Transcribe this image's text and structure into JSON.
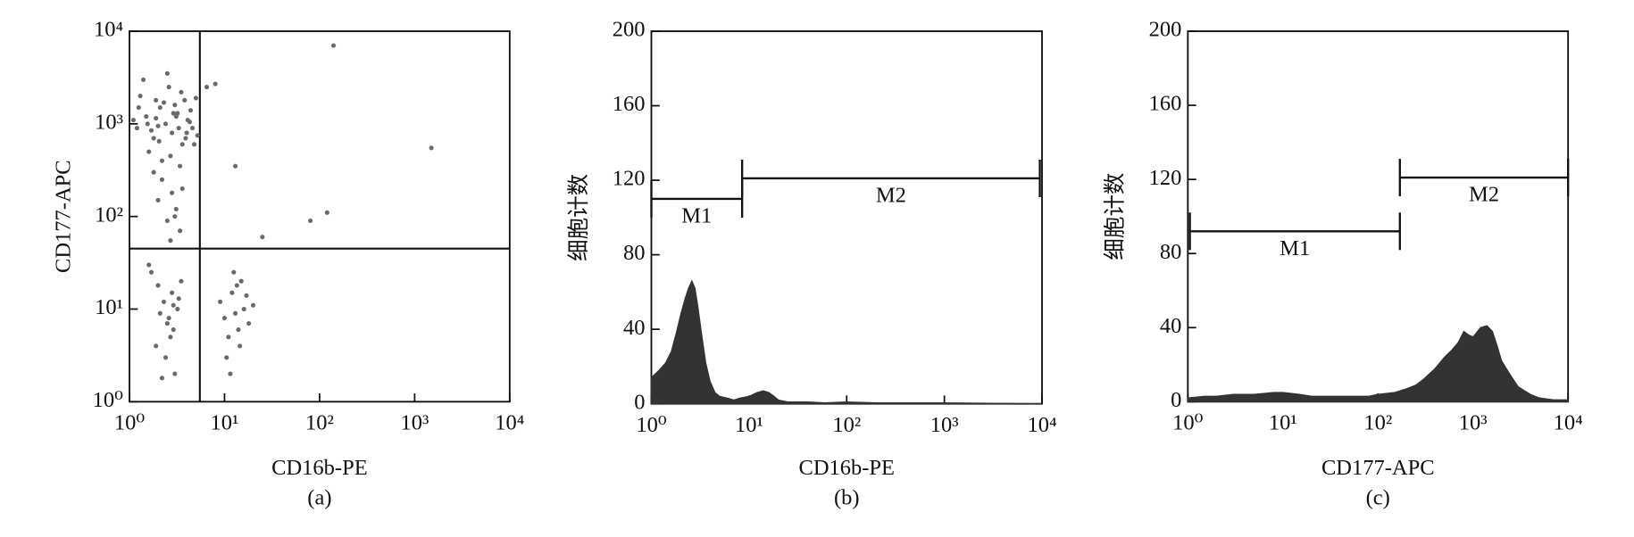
{
  "chart_data": [
    {
      "type": "scatter",
      "xlabel": "CD16b-PE",
      "ylabel": "CD177-APC",
      "caption": "(a)",
      "log": true,
      "xlim": [
        1,
        10000
      ],
      "ylim": [
        1,
        10000
      ],
      "xticks": [
        {
          "value": 1,
          "label": "10⁰"
        },
        {
          "value": 10,
          "label": "10¹"
        },
        {
          "value": 100,
          "label": "10²"
        },
        {
          "value": 1000,
          "label": "10³"
        },
        {
          "value": 10000,
          "label": "10⁴"
        }
      ],
      "yticks": [
        {
          "value": 1,
          "label": "10⁰"
        },
        {
          "value": 10,
          "label": "10¹"
        },
        {
          "value": 100,
          "label": "10²"
        },
        {
          "value": 1000,
          "label": "10³"
        },
        {
          "value": 10000,
          "label": "10⁴"
        }
      ],
      "quadrant": {
        "x": 5.5,
        "y": 45
      },
      "series": [
        {
          "color": "#6a6a6a",
          "x": [
            1.2,
            1.5,
            1.8,
            2.1,
            2.4,
            2.8,
            3.2,
            3.6,
            4.1,
            4.6,
            1.3,
            1.6,
            1.9,
            2.2,
            2.6,
            3.0,
            3.4,
            3.9,
            4.4,
            5.0,
            1.1,
            1.4,
            1.7,
            2.0,
            2.3,
            2.7,
            3.1,
            3.5,
            4.0,
            4.8,
            1.25,
            1.55,
            2.05,
            2.5,
            2.9,
            3.3,
            3.8,
            4.3,
            5.2,
            1.9,
            2.2,
            2.8,
            3.1,
            2.5,
            3.4,
            2.0,
            2.7,
            3.6,
            1.8,
            3.0,
            1.6,
            2.0,
            2.3,
            2.6,
            2.9,
            3.2,
            1.9,
            2.4,
            2.8,
            3.5,
            2.1,
            2.7,
            3.0,
            1.7,
            2.5,
            3.3,
            2.2,
            2.9,
            9,
            10,
            11,
            12,
            13,
            14,
            15,
            16,
            18,
            10.5,
            12.5,
            14.5,
            17,
            20,
            11.5,
            13.5,
            140,
            13,
            80,
            120,
            1500,
            25,
            6.5,
            8
          ],
          "values": [
            900,
            1200,
            700,
            1500,
            1000,
            800,
            1300,
            600,
            1100,
            900,
            2000,
            500,
            1800,
            400,
            2500,
            1600,
            350,
            700,
            1400,
            1900,
            1100,
            3000,
            850,
            950,
            1700,
            450,
            1200,
            2200,
            800,
            600,
            1500,
            1000,
            650,
            3500,
            1300,
            900,
            1800,
            1050,
            750,
            1150,
            250,
            180,
            120,
            90,
            70,
            150,
            55,
            200,
            300,
            100,
            30,
            18,
            12,
            8,
            6,
            10,
            4,
            3,
            15,
            20,
            9,
            5,
            2,
            25,
            7,
            13,
            1.8,
            11,
            12,
            8,
            5,
            15,
            9,
            6,
            20,
            10,
            7,
            3,
            25,
            4,
            14,
            11,
            2,
            18,
            7000,
            350,
            90,
            110,
            550,
            60,
            2500,
            2700
          ]
        }
      ]
    },
    {
      "type": "area",
      "xlabel": "CD16b-PE",
      "ylabel": "细胞计数",
      "caption": "(b)",
      "log": true,
      "color": "#333333",
      "xlim": [
        1,
        10000
      ],
      "ylim": [
        0,
        200
      ],
      "xticks": [
        {
          "value": 1,
          "label": "10⁰"
        },
        {
          "value": 10,
          "label": "10¹"
        },
        {
          "value": 100,
          "label": "10²"
        },
        {
          "value": 1000,
          "label": "10³"
        },
        {
          "value": 10000,
          "label": "10⁴"
        }
      ],
      "yticks": [
        0,
        40,
        80,
        120,
        160,
        200
      ],
      "x": [
        1,
        1.2,
        1.4,
        1.6,
        1.8,
        2.0,
        2.2,
        2.4,
        2.6,
        2.8,
        3.0,
        3.3,
        3.6,
        4.0,
        4.5,
        5,
        6,
        7,
        8,
        10,
        12,
        14,
        16,
        18,
        20,
        25,
        30,
        40,
        60,
        100,
        200,
        500,
        1000,
        3000,
        10000
      ],
      "values": [
        14,
        18,
        22,
        28,
        38,
        48,
        56,
        62,
        66,
        62,
        52,
        36,
        22,
        12,
        6,
        4,
        3,
        2,
        3,
        4,
        6,
        7,
        6,
        4,
        2,
        1,
        1,
        1,
        0.5,
        1,
        0.5,
        0.5,
        0.5,
        0.3,
        0
      ],
      "gates": [
        {
          "label": "M1",
          "range": [
            1,
            8.5
          ],
          "level": 110
        },
        {
          "label": "M2",
          "range": [
            8.5,
            9500
          ],
          "level": 121
        }
      ]
    },
    {
      "type": "area",
      "xlabel": "CD177-APC",
      "ylabel": "细胞计数",
      "caption": "(c)",
      "log": true,
      "color": "#333333",
      "xlim": [
        1,
        10000
      ],
      "ylim": [
        0,
        200
      ],
      "xticks": [
        {
          "value": 1,
          "label": "10⁰"
        },
        {
          "value": 10,
          "label": "10¹"
        },
        {
          "value": 100,
          "label": "10²"
        },
        {
          "value": 1000,
          "label": "10³"
        },
        {
          "value": 10000,
          "label": "10⁴"
        }
      ],
      "yticks": [
        0,
        40,
        80,
        120,
        160,
        200
      ],
      "x": [
        1,
        1.5,
        2,
        3,
        5,
        8,
        10,
        15,
        20,
        30,
        50,
        80,
        100,
        150,
        200,
        250,
        300,
        400,
        500,
        600,
        700,
        800,
        900,
        1000,
        1200,
        1400,
        1600,
        1800,
        2000,
        2500,
        3000,
        4000,
        5000,
        7000,
        10000
      ],
      "values": [
        2,
        3,
        3,
        4,
        4,
        5,
        5,
        4,
        3,
        3,
        3,
        3,
        4,
        5,
        7,
        9,
        12,
        18,
        24,
        28,
        32,
        38,
        36,
        35,
        40,
        41,
        38,
        30,
        22,
        14,
        8,
        4,
        2,
        1,
        1
      ],
      "gates": [
        {
          "label": "M1",
          "range": [
            1.05,
            170
          ],
          "level": 92
        },
        {
          "label": "M2",
          "range": [
            170,
            10000
          ],
          "level": 121
        }
      ]
    }
  ]
}
